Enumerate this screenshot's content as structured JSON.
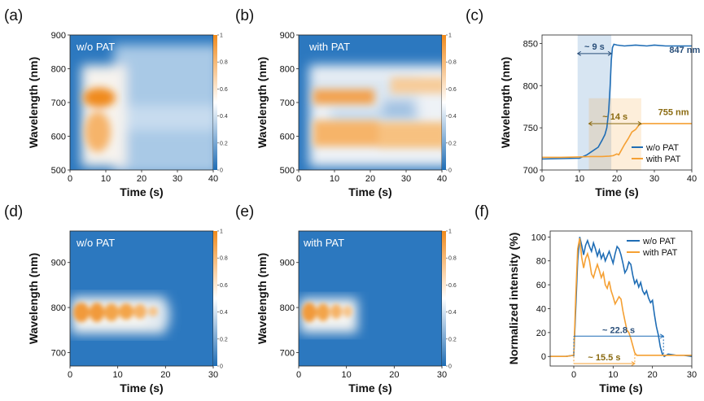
{
  "colors": {
    "blue": "#1f6db5",
    "orange": "#f5a033",
    "dark_blue_text": "#2a4f7a",
    "olive_text": "#8a6a10",
    "teal_line": "#3a8fb7"
  },
  "colormap": [
    "#1f6db5",
    "#ffffff",
    "#f08a1c"
  ],
  "panels": {
    "a": {
      "label": "(a)",
      "condition": "w/o PAT"
    },
    "b": {
      "label": "(b)",
      "condition": "with PAT"
    },
    "c": {
      "label": "(c)"
    },
    "d": {
      "label": "(d)",
      "condition": "w/o PAT"
    },
    "e": {
      "label": "(e)",
      "condition": "with PAT"
    },
    "f": {
      "label": "(f)"
    }
  },
  "colorbar_ticks": [
    "0",
    "0.2",
    "0.4",
    "0.6",
    "0.8",
    "1"
  ],
  "chart_data": [
    {
      "id": "a",
      "type": "heatmap",
      "xlabel": "Time (s)",
      "ylabel": "Wavelength (nm)",
      "xlim": [
        0,
        40
      ],
      "ylim": [
        500,
        900
      ],
      "xticks": [
        0,
        10,
        20,
        30,
        40
      ],
      "yticks": [
        500,
        600,
        700,
        800,
        900
      ],
      "clim": [
        0,
        1
      ]
    },
    {
      "id": "b",
      "type": "heatmap",
      "xlabel": "Time (s)",
      "ylabel": "Wavelength (nm)",
      "xlim": [
        0,
        40
      ],
      "ylim": [
        500,
        900
      ],
      "xticks": [
        0,
        10,
        20,
        30,
        40
      ],
      "yticks": [
        500,
        600,
        700,
        800,
        900
      ],
      "clim": [
        0,
        1
      ]
    },
    {
      "id": "c",
      "type": "line",
      "xlabel": "Time (s)",
      "ylabel": "Wavelength (nm)",
      "xlim": [
        0,
        40
      ],
      "ylim": [
        700,
        860
      ],
      "xticks": [
        0,
        10,
        20,
        30,
        40
      ],
      "yticks": [
        700,
        750,
        800,
        850
      ],
      "legend_position": "bottom-right",
      "series": [
        {
          "name": "w/o PAT",
          "color": "#1f6db5",
          "x": [
            0,
            5,
            10,
            12,
            14,
            15,
            16,
            16.8,
            17.3,
            17.8,
            18.2,
            18.5,
            18.8,
            19.2,
            20,
            22,
            25,
            28,
            30,
            33,
            35,
            38,
            40
          ],
          "y": [
            713,
            713.5,
            714,
            718,
            724,
            727,
            735,
            742,
            750,
            770,
            800,
            830,
            845,
            849,
            848,
            847,
            848,
            847,
            848,
            847,
            847,
            847,
            847
          ]
        },
        {
          "name": "with PAT",
          "color": "#f5a033",
          "x": [
            0,
            5,
            10,
            13,
            16,
            18,
            19,
            20,
            20.5,
            21,
            22,
            23,
            24,
            25,
            26,
            27,
            30,
            35,
            40
          ],
          "y": [
            715,
            715,
            715.5,
            716,
            716,
            716.5,
            717,
            719,
            718,
            722,
            730,
            737,
            745,
            748,
            754,
            755,
            755,
            755,
            755
          ]
        }
      ],
      "shaded_regions": [
        {
          "x_start": 9.5,
          "x_end": 18.5,
          "y_start": 700,
          "y_end": 860,
          "color": "#1f6db5"
        },
        {
          "x_start": 12.5,
          "x_end": 26.5,
          "y_start": 700,
          "y_end": 785,
          "color": "#f5a033"
        }
      ],
      "annotations": [
        {
          "text": "~ 9 s",
          "x_start": 9.5,
          "x_end": 18.5,
          "y": 838,
          "color": "#2a4f7a"
        },
        {
          "text": "~ 14 s",
          "x_start": 12.5,
          "x_end": 26.5,
          "y": 755,
          "color": "#8a6a10"
        },
        {
          "text": "847 nm",
          "x": 34,
          "y": 839,
          "color": "#2a4f7a"
        },
        {
          "text": "755 nm",
          "x": 31,
          "y": 765,
          "color": "#8a6a10"
        }
      ]
    },
    {
      "id": "d",
      "type": "heatmap",
      "xlabel": "Time (s)",
      "ylabel": "Wavelength (nm)",
      "xlim": [
        0,
        30
      ],
      "ylim": [
        670,
        970
      ],
      "xticks": [
        0,
        10,
        20,
        30
      ],
      "yticks": [
        700,
        800,
        900
      ],
      "clim": [
        0,
        1
      ]
    },
    {
      "id": "e",
      "type": "heatmap",
      "xlabel": "Time (s)",
      "ylabel": "Wavelength (nm)",
      "xlim": [
        0,
        30
      ],
      "ylim": [
        670,
        970
      ],
      "xticks": [
        0,
        10,
        20,
        30
      ],
      "yticks": [
        700,
        800,
        900
      ],
      "clim": [
        0,
        1
      ]
    },
    {
      "id": "f",
      "type": "line",
      "xlabel": "Time (s)",
      "ylabel": "Normalized intensity (%)",
      "xlim": [
        -6,
        30
      ],
      "ylim": [
        -8,
        105
      ],
      "xticks": [
        0,
        10,
        20,
        30
      ],
      "yticks": [
        0,
        20,
        40,
        60,
        80,
        100
      ],
      "legend_position": "top-right",
      "series": [
        {
          "name": "w/o PAT",
          "color": "#1f6db5",
          "x": [
            -6,
            -2,
            0,
            0.5,
            1,
            1.5,
            2,
            2.5,
            3,
            3.5,
            4,
            4.5,
            5,
            5.5,
            6,
            6.5,
            7,
            7.5,
            8,
            8.5,
            9,
            9.5,
            10,
            10.5,
            11,
            11.5,
            12,
            12.5,
            13,
            13.5,
            14,
            14.5,
            15,
            15.5,
            16,
            16.5,
            17,
            17.5,
            18,
            18.5,
            19,
            19.5,
            20,
            20.5,
            21,
            21.5,
            22,
            22.5,
            23,
            24,
            26,
            28,
            30
          ],
          "y": [
            0,
            0,
            1,
            40,
            80,
            100,
            93,
            85,
            93,
            97,
            92,
            88,
            95,
            90,
            84,
            89,
            82,
            86,
            80,
            84,
            88,
            83,
            78,
            86,
            92,
            90,
            85,
            78,
            70,
            73,
            79,
            77,
            68,
            61,
            64,
            58,
            62,
            55,
            52,
            55,
            49,
            45,
            47,
            35,
            25,
            18,
            8,
            2,
            0,
            2,
            1,
            1,
            0
          ]
        },
        {
          "name": "with PAT",
          "color": "#f5a033",
          "x": [
            -6,
            -2,
            0,
            0.5,
            1,
            1.5,
            2,
            2.5,
            3,
            3.5,
            4,
            4.5,
            5,
            5.5,
            6,
            6.5,
            7,
            7.5,
            8,
            8.5,
            9,
            9.5,
            10,
            10.5,
            11,
            11.5,
            12,
            12.5,
            13,
            13.5,
            14,
            14.5,
            15,
            15.5,
            16,
            18,
            22,
            26,
            30
          ],
          "y": [
            0,
            0,
            1,
            50,
            90,
            99,
            83,
            74,
            82,
            86,
            80,
            69,
            66,
            72,
            77,
            72,
            66,
            70,
            60,
            57,
            63,
            55,
            50,
            44,
            47,
            50,
            48,
            38,
            30,
            22,
            20,
            15,
            9,
            3,
            1,
            1,
            1,
            1,
            1
          ]
        }
      ],
      "annotations": [
        {
          "text": "~ 22.8 s",
          "x_start": 0,
          "x_end": 22.8,
          "y": 17,
          "color": "#1f6db5",
          "text_color": "#2a4f7a"
        },
        {
          "text": "~ 15.5 s",
          "x_start": 0,
          "x_end": 15.5,
          "y": -6,
          "color": "#f5a033",
          "text_color": "#8a6a10"
        }
      ]
    }
  ]
}
